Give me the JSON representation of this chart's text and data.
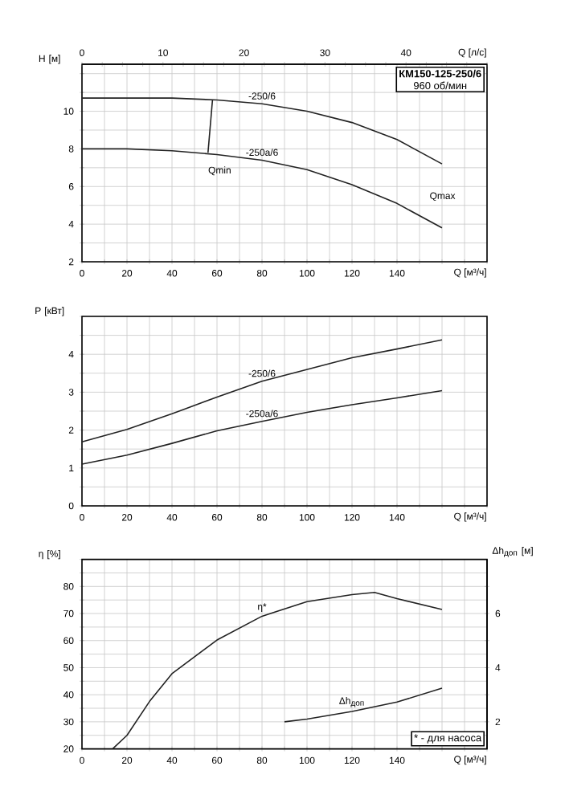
{
  "chart_data": [
    {
      "type": "line",
      "title": "КМ150-125-250/6",
      "subtitle": "960 об/мин",
      "xlabel": "Q [м³/ч]",
      "x2label": "Q [л/с]",
      "ylabel": "H [м]",
      "grid": true,
      "x": [
        0,
        20,
        40,
        60,
        80,
        100,
        120,
        140,
        160
      ],
      "xlim": [
        0,
        180
      ],
      "xticks": [
        0,
        {
          "value": 10,
          "label": null
        },
        20,
        {
          "value": 30,
          "label": null
        },
        40,
        {
          "value": 50,
          "label": null
        },
        60,
        {
          "value": 70,
          "label": null
        },
        80,
        {
          "value": 90,
          "label": null
        },
        100,
        {
          "value": 110,
          "label": null
        },
        120,
        {
          "value": 130,
          "label": null
        },
        140,
        {
          "value": 150,
          "label": null
        },
        {
          "value": 160,
          "label": null
        },
        {
          "value": 170,
          "label": null
        },
        {
          "value": 180,
          "label": null
        }
      ],
      "x2lim": [
        0,
        50
      ],
      "x2ticks": [
        0,
        {
          "value": 2.5,
          "label": null
        },
        {
          "value": 5,
          "label": null
        },
        {
          "value": 7.5,
          "label": null
        },
        10,
        {
          "value": 12.5,
          "label": null
        },
        {
          "value": 15,
          "label": null
        },
        {
          "value": 17.5,
          "label": null
        },
        20,
        {
          "value": 22.5,
          "label": null
        },
        {
          "value": 25,
          "label": null
        },
        {
          "value": 27.5,
          "label": null
        },
        30,
        {
          "value": 32.5,
          "label": null
        },
        {
          "value": 35,
          "label": null
        },
        {
          "value": 37.5,
          "label": null
        },
        40,
        {
          "value": 42.5,
          "label": null
        },
        {
          "value": 45,
          "label": null
        },
        {
          "value": 47.5,
          "label": null
        },
        {
          "value": 50,
          "label": null
        }
      ],
      "ylim": [
        2,
        12.5
      ],
      "yticks": [
        2,
        {
          "value": 3,
          "label": null
        },
        4,
        {
          "value": 5,
          "label": null
        },
        6,
        {
          "value": 7,
          "label": null
        },
        8,
        {
          "value": 9,
          "label": null
        },
        10,
        {
          "value": 11,
          "label": null
        },
        {
          "value": 12,
          "label": null
        }
      ],
      "series": [
        {
          "name": "-250/6",
          "color": "#222222",
          "values": [
            10.7,
            10.7,
            10.7,
            10.6,
            10.4,
            10.0,
            9.4,
            8.5,
            7.2
          ]
        },
        {
          "name": "-250а/6",
          "color": "#222222",
          "values": [
            8.0,
            8.0,
            7.9,
            7.7,
            7.4,
            6.9,
            6.1,
            5.1,
            3.8
          ]
        },
        {
          "type": "line",
          "color": "#222222",
          "x": [
            58,
            56
          ],
          "values": [
            10.6,
            7.8
          ]
        }
      ],
      "annotations": [
        "Qmin",
        "Qmax"
      ]
    },
    {
      "type": "line",
      "xlabel": "Q [м³/ч]",
      "ylabel": "P [кВт]",
      "grid": true,
      "x": [
        0,
        20,
        40,
        60,
        80,
        100,
        120,
        140,
        160
      ],
      "xlim": [
        0,
        180
      ],
      "xticks": [
        0,
        {
          "value": 10,
          "label": null
        },
        20,
        {
          "value": 30,
          "label": null
        },
        40,
        {
          "value": 50,
          "label": null
        },
        60,
        {
          "value": 70,
          "label": null
        },
        80,
        {
          "value": 90,
          "label": null
        },
        100,
        {
          "value": 110,
          "label": null
        },
        120,
        {
          "value": 130,
          "label": null
        },
        140,
        {
          "value": 150,
          "label": null
        },
        {
          "value": 160,
          "label": null
        },
        {
          "value": 170,
          "label": null
        },
        {
          "value": 180,
          "label": null
        }
      ],
      "ylim": [
        0,
        5
      ],
      "yticks": [
        0,
        {
          "value": 0.5,
          "label": null
        },
        1,
        {
          "value": 1.5,
          "label": null
        },
        2,
        {
          "value": 2.5,
          "label": null
        },
        3,
        {
          "value": 3.5,
          "label": null
        },
        4,
        {
          "value": 4.5,
          "label": null
        },
        {
          "value": 5,
          "label": null
        }
      ],
      "series": [
        {
          "name": "-250/6",
          "color": "#222222",
          "values": [
            1.69,
            2.02,
            2.43,
            2.87,
            3.29,
            3.6,
            3.91,
            4.14,
            4.38
          ]
        },
        {
          "name": "-250а/6",
          "color": "#222222",
          "values": [
            1.1,
            1.34,
            1.65,
            1.98,
            2.23,
            2.47,
            2.67,
            2.85,
            3.04
          ]
        }
      ]
    },
    {
      "type": "line",
      "xlabel": "Q [м³/ч]",
      "ylabel": "η [%]",
      "y2label": "Δh$_{доп}$ [м]",
      "grid": true,
      "xlim": [
        0,
        180
      ],
      "xticks": [
        0,
        {
          "value": 10,
          "label": null
        },
        20,
        {
          "value": 30,
          "label": null
        },
        40,
        {
          "value": 50,
          "label": null
        },
        60,
        {
          "value": 70,
          "label": null
        },
        80,
        {
          "value": 90,
          "label": null
        },
        100,
        {
          "value": 110,
          "label": null
        },
        120,
        {
          "value": 130,
          "label": null
        },
        140,
        {
          "value": 150,
          "label": null
        },
        {
          "value": 160,
          "label": null
        },
        {
          "value": 170,
          "label": null
        },
        {
          "value": 180,
          "label": null
        }
      ],
      "ylim": [
        20,
        90
      ],
      "yticks": [
        20,
        {
          "value": 25,
          "label": null
        },
        30,
        {
          "value": 35,
          "label": null
        },
        40,
        {
          "value": 45,
          "label": null
        },
        50,
        {
          "value": 55,
          "label": null
        },
        60,
        {
          "value": 65,
          "label": null
        },
        70,
        {
          "value": 75,
          "label": null
        },
        80,
        {
          "value": 85,
          "label": null
        },
        {
          "value": 90,
          "label": null
        }
      ],
      "y2lim": [
        1,
        8
      ],
      "y2ticks": [
        2,
        {
          "value": 3,
          "label": null
        },
        4,
        {
          "value": 5,
          "label": null
        },
        6,
        {
          "value": 7,
          "label": null
        }
      ],
      "series": [
        {
          "name": "η*",
          "color": "#222222",
          "x": [
            13.6,
            20,
            30,
            40,
            60,
            80,
            100,
            120,
            130,
            140,
            160
          ],
          "values": [
            20,
            25,
            37.5,
            47.8,
            60.2,
            69,
            74.4,
            77,
            77.8,
            75.5,
            71.5
          ]
        },
        {
          "name": "Δh$_{доп}$",
          "color": "#222222",
          "axis": "y2",
          "x": [
            90,
            100,
            120,
            140,
            160
          ],
          "values": [
            2.0,
            2.1,
            2.38,
            2.73,
            3.24
          ]
        }
      ],
      "annotations": [
        "* - для насоса"
      ]
    }
  ]
}
